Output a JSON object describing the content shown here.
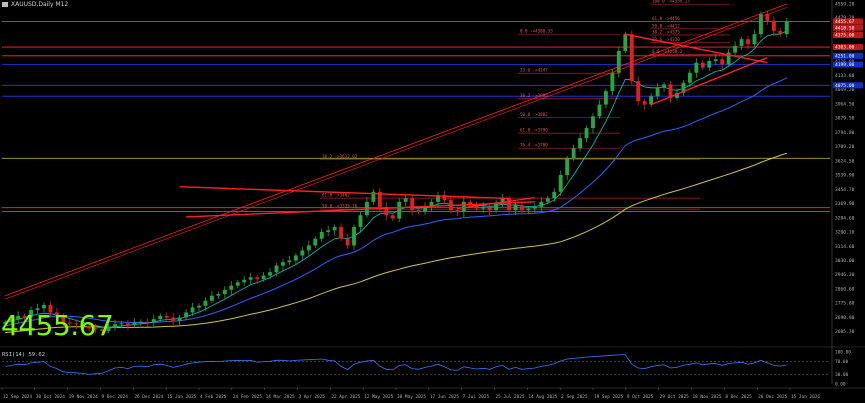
{
  "window": {
    "title": "XAUUSD,Daily  M12"
  },
  "price_display": "4455.67",
  "rsi_label": "RSI(14) 59.62",
  "colors": {
    "background": "#000000",
    "bull_candle": "#26a641",
    "bear_candle": "#e02020",
    "trendline": "#ff2020",
    "fib_line": "#b22222",
    "support_line": "#ff3030",
    "blue_level": "#1e3cff",
    "ma_fast": "#00c8c8",
    "ma_mid": "#3060ff",
    "ma_slow": "#d4c040",
    "rsi": "#3a78ff",
    "price_text": "#7cfc00"
  },
  "chart_data": [
    {
      "type": "candlestick",
      "title": "XAUUSD,Daily  M12",
      "xlabel": "",
      "ylabel": "",
      "ylim": [
        2520,
        4560
      ],
      "grid": false,
      "y_ticks": [
        "4559.28",
        "4479.20",
        "4390.80",
        "4305.40",
        "4216.00",
        "4133.80",
        "4049.20",
        "3964.50",
        "3879.50",
        "3794.80",
        "3709.20",
        "3624.50",
        "3539.90",
        "3454.70",
        "3369.90",
        "3284.60",
        "3200.10",
        "3114.60",
        "3030.00",
        "2946.30",
        "2860.60",
        "2775.80",
        "2690.90",
        "2605.70"
      ],
      "x_ticks": [
        "12 Sep 2024",
        "30 Oct 2024",
        "19 Nov 2024",
        "9 Dec 2024",
        "26 Dec 2024",
        "15 Jan 2025",
        "4 Feb 2025",
        "24 Feb 2025",
        "14 Mar 2025",
        "3 Apr 2025",
        "22 Apr 2025",
        "12 May 2025",
        "30 May 2025",
        "17 Jun 2025",
        "7 Jul 2025",
        "25 Jul 2025",
        "14 Aug 2025",
        "2 Sep 2025",
        "19 Sep 2025",
        "9 Oct 2025",
        "29 Oct 2025",
        "18 Nov 2025",
        "8 Dec 2025",
        "26 Dec 2025",
        "15 Jan 2026"
      ],
      "price_tags": [
        "4455.67",
        "4418.50",
        "4375.00",
        "4303.00",
        "4251.00",
        "4199.00",
        "4075.00"
      ],
      "fib_levels_left": [
        {
          "label": "100.0 ->4559.13",
          "price": 4559
        },
        {
          "label": "61.8 ->4456",
          "price": 4456
        },
        {
          "label": "50.0 ->4412",
          "price": 4412
        },
        {
          "label": "38.2 ->4375",
          "price": 4375
        },
        {
          "label": "23.6 ->4330",
          "price": 4330
        },
        {
          "label": "0.0 ->4258.2",
          "price": 4258
        }
      ],
      "fib_levels_mid": [
        {
          "label": "0.0 ->4380.33",
          "price": 4380
        },
        {
          "label": "23.6 ->4147",
          "price": 4147
        },
        {
          "label": "38.2 ->3995",
          "price": 3995
        },
        {
          "label": "50.0 ->3882",
          "price": 3882
        },
        {
          "label": "61.8 ->3790",
          "price": 3790
        },
        {
          "label": "76.4 ->3700",
          "price": 3700
        }
      ],
      "fib_levels_low": [
        {
          "label": "38.2 ->3632.02",
          "price": 3632
        },
        {
          "label": "61.8 ->3402",
          "price": 3402
        },
        {
          "label": "50.0 ->3335.76",
          "price": 3336
        }
      ],
      "horizontal_levels": [
        {
          "price": 4456,
          "color": "red"
        },
        {
          "price": 4303,
          "color": "red"
        },
        {
          "price": 4251,
          "color": "red"
        },
        {
          "price": 4199,
          "color": "blue"
        },
        {
          "price": 4075,
          "color": "blue"
        },
        {
          "price": 4010,
          "color": "blue"
        },
        {
          "price": 3640,
          "color": "olive"
        },
        {
          "price": 3345,
          "color": "red"
        },
        {
          "price": 3322,
          "color": "red"
        }
      ],
      "close_series": [
        2662,
        2680,
        2700,
        2695,
        2735,
        2745,
        2765,
        2720,
        2700,
        2660,
        2655,
        2650,
        2640,
        2625,
        2620,
        2610,
        2630,
        2650,
        2655,
        2645,
        2660,
        2665,
        2660,
        2680,
        2700,
        2690,
        2670,
        2690,
        2720,
        2750,
        2760,
        2790,
        2820,
        2830,
        2855,
        2880,
        2900,
        2915,
        2930,
        2920,
        2940,
        2960,
        3000,
        3020,
        3030,
        3060,
        3090,
        3120,
        3160,
        3200,
        3210,
        3230,
        3160,
        3120,
        3230,
        3300,
        3380,
        3440,
        3350,
        3300,
        3280,
        3380,
        3400,
        3330,
        3320,
        3350,
        3380,
        3420,
        3390,
        3330,
        3320,
        3380,
        3360,
        3340,
        3350,
        3330,
        3370,
        3400,
        3330,
        3360,
        3330,
        3340,
        3350,
        3380,
        3400,
        3440,
        3540,
        3640,
        3700,
        3760,
        3820,
        3890,
        3960,
        4040,
        4150,
        4280,
        4380,
        4100,
        3980,
        3960,
        4010,
        4060,
        4080,
        4000,
        4030,
        4090,
        4150,
        4210,
        4180,
        4220,
        4230,
        4200,
        4270,
        4310,
        4350,
        4320,
        4380,
        4500,
        4460,
        4400,
        4380,
        4455
      ],
      "ma_fast": [
        2662,
        2670,
        2680,
        2690,
        2700,
        2710,
        2715,
        2712,
        2706,
        2695,
        2684,
        2672,
        2661,
        2650,
        2641,
        2634,
        2632,
        2635,
        2640,
        2643,
        2648,
        2653,
        2656,
        2663,
        2672,
        2678,
        2680,
        2684,
        2694,
        2708,
        2722,
        2740,
        2760,
        2780,
        2800,
        2822,
        2844,
        2865,
        2885,
        2898,
        2913,
        2928,
        2948,
        2968,
        2986,
        3006,
        3030,
        3055,
        3083,
        3112,
        3136,
        3160,
        3166,
        3160,
        3176,
        3200,
        3240,
        3285,
        3308,
        3315,
        3312,
        3330,
        3348,
        3345,
        3342,
        3346,
        3352,
        3367,
        3372,
        3365,
        3357,
        3362,
        3361,
        3357,
        3357,
        3352,
        3356,
        3367,
        3360,
        3362,
        3355,
        3352,
        3352,
        3360,
        3371,
        3390,
        3430,
        3485,
        3540,
        3600,
        3660,
        3720,
        3790,
        3860,
        3940,
        4030,
        4110,
        4108,
        4085,
        4065,
        4060,
        4060,
        4065,
        4050,
        4045,
        4056,
        4075,
        4102,
        4118,
        4139,
        4158,
        4166,
        4190,
        4215,
        4245,
        4262,
        4293,
        4340,
        4370,
        4380,
        4380,
        4400
      ],
      "ma_mid": [
        2640,
        2648,
        2656,
        2664,
        2672,
        2680,
        2688,
        2694,
        2698,
        2699,
        2697,
        2694,
        2690,
        2685,
        2679,
        2673,
        2668,
        2665,
        2663,
        2661,
        2660,
        2660,
        2659,
        2660,
        2663,
        2666,
        2668,
        2671,
        2676,
        2683,
        2691,
        2701,
        2713,
        2726,
        2740,
        2756,
        2772,
        2788,
        2804,
        2818,
        2833,
        2848,
        2865,
        2883,
        2900,
        2918,
        2938,
        2958,
        2980,
        3003,
        3025,
        3046,
        3060,
        3068,
        3080,
        3098,
        3122,
        3150,
        3172,
        3188,
        3198,
        3212,
        3226,
        3234,
        3240,
        3248,
        3256,
        3266,
        3273,
        3277,
        3280,
        3285,
        3289,
        3291,
        3294,
        3296,
        3299,
        3304,
        3305,
        3308,
        3309,
        3310,
        3312,
        3316,
        3322,
        3331,
        3348,
        3374,
        3402,
        3432,
        3464,
        3497,
        3533,
        3572,
        3615,
        3665,
        3716,
        3738,
        3752,
        3763,
        3775,
        3788,
        3801,
        3808,
        3816,
        3828,
        3843,
        3861,
        3876,
        3893,
        3910,
        3923,
        3940,
        3958,
        3978,
        3995,
        4015,
        4042,
        4066,
        4085,
        4101,
        4120
      ],
      "ma_slow": [
        2600,
        2604,
        2608,
        2612,
        2616,
        2620,
        2624,
        2628,
        2631,
        2633,
        2634,
        2635,
        2635,
        2635,
        2634,
        2633,
        2632,
        2631,
        2631,
        2631,
        2631,
        2632,
        2632,
        2633,
        2635,
        2637,
        2638,
        2640,
        2643,
        2647,
        2651,
        2656,
        2662,
        2668,
        2675,
        2683,
        2691,
        2700,
        2709,
        2717,
        2726,
        2735,
        2745,
        2756,
        2767,
        2778,
        2790,
        2803,
        2817,
        2832,
        2846,
        2860,
        2872,
        2881,
        2891,
        2903,
        2917,
        2932,
        2946,
        2958,
        2968,
        2978,
        2989,
        2998,
        3006,
        3014,
        3022,
        3031,
        3039,
        3046,
        3052,
        3059,
        3065,
        3071,
        3077,
        3082,
        3087,
        3093,
        3098,
        3103,
        3107,
        3112,
        3116,
        3121,
        3127,
        3133,
        3142,
        3155,
        3169,
        3185,
        3202,
        3220,
        3240,
        3261,
        3284,
        3309,
        3336,
        3356,
        3372,
        3386,
        3399,
        3412,
        3425,
        3436,
        3447,
        3458,
        3470,
        3483,
        3495,
        3508,
        3520,
        3532,
        3545,
        3558,
        3572,
        3585,
        3599,
        3615,
        3630,
        3644,
        3657,
        3670
      ],
      "rsi": {
        "ylim": [
          0,
          100
        ],
        "levels": [
          70,
          30
        ],
        "ticks": [
          "100.00",
          "70.00",
          "30.00",
          "0.00"
        ],
        "values": [
          55,
          58,
          62,
          60,
          66,
          68,
          70,
          55,
          48,
          38,
          36,
          35,
          33,
          30,
          32,
          34,
          42,
          50,
          52,
          48,
          55,
          56,
          54,
          60,
          62,
          58,
          52,
          56,
          62,
          66,
          68,
          70,
          71,
          70,
          72,
          73,
          74,
          73,
          74,
          68,
          70,
          71,
          74,
          74,
          72,
          74,
          75,
          76,
          77,
          78,
          74,
          72,
          55,
          45,
          62,
          68,
          72,
          74,
          55,
          46,
          44,
          58,
          60,
          48,
          46,
          52,
          56,
          62,
          54,
          44,
          43,
          54,
          50,
          47,
          49,
          46,
          54,
          58,
          46,
          52,
          46,
          48,
          50,
          55,
          58,
          63,
          72,
          78,
          80,
          82,
          84,
          86,
          87,
          88,
          90,
          91,
          92,
          62,
          50,
          48,
          54,
          58,
          60,
          50,
          52,
          58,
          62,
          66,
          60,
          63,
          64,
          58,
          64,
          66,
          68,
          62,
          66,
          74,
          66,
          58,
          56,
          59.62
        ]
      }
    }
  ]
}
